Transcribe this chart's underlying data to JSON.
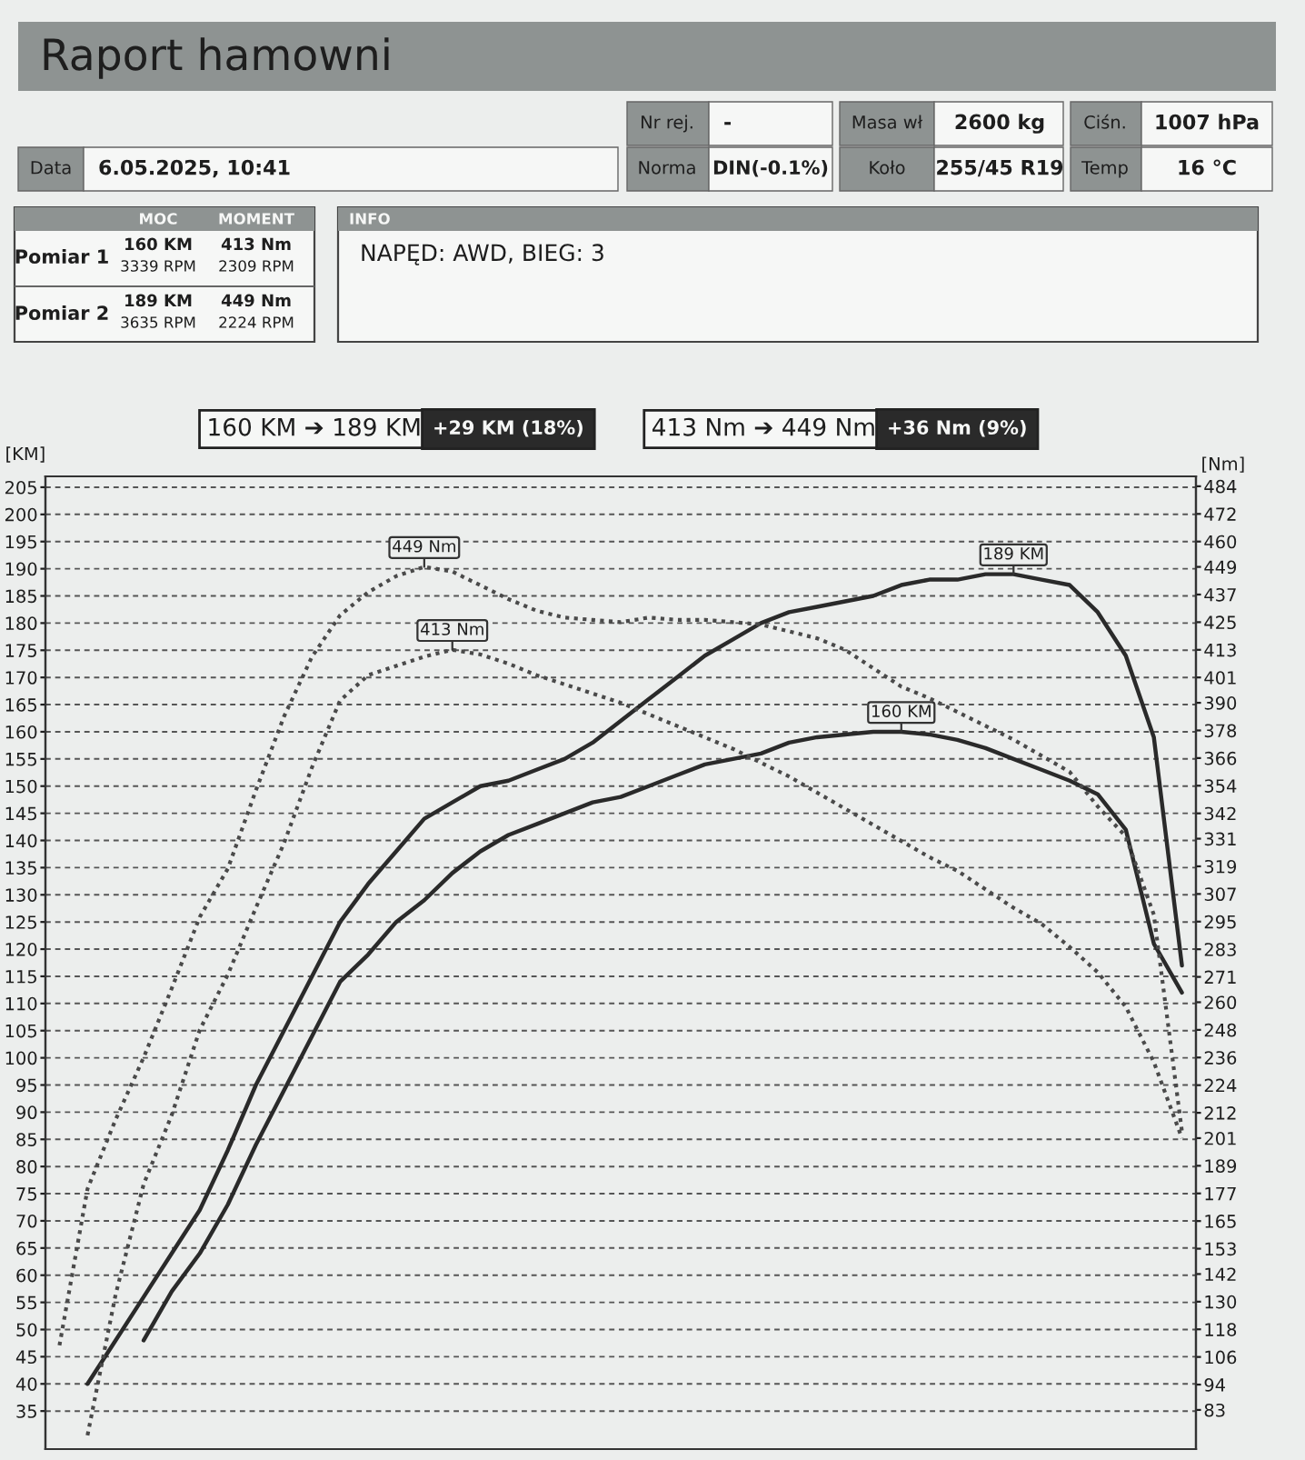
{
  "chart_data": [
    {
      "type": "other",
      "title": "Raport hamowni",
      "annotations": [
        "Data",
        "6.05.2025, 10:41",
        "Nr rej.",
        "-",
        "Norma",
        "DIN(-0.1%)",
        "Masa wł",
        "2600 kg",
        "Koło",
        "255/45 R19",
        "Ciśn.",
        "1007 hPa",
        "Temp",
        "16 °C",
        "MOC",
        "MOMENT",
        "Pomiar 1",
        "160 KM",
        "3339 RPM",
        "413 Nm",
        "2309 RPM",
        "Pomiar 2",
        "189 KM",
        "3635 RPM",
        "449 Nm",
        "2224 RPM",
        "INFO",
        "NAPĘD: AWD, BIEG: 3"
      ]
    },
    {
      "type": "line",
      "ylabel": "[KM]",
      "y2label": "[Nm]",
      "annotations": [
        "160 KM ➔ 189 KM",
        "+29 KM (18%)",
        "413 Nm ➔ 449 Nm",
        "+36 Nm (9%)"
      ],
      "categories": [
        null,
        null,
        null,
        null,
        null,
        null,
        null,
        null,
        null,
        null,
        null,
        null,
        null,
        null,
        null,
        null,
        null,
        null,
        null,
        null,
        null,
        null,
        null,
        null,
        null,
        null,
        null,
        null,
        null,
        null,
        null,
        null,
        null,
        null,
        null,
        null,
        null,
        null,
        null,
        null,
        null
      ],
      "ylim": [
        28,
        207
      ],
      "yticks": [
        205,
        200,
        195,
        190,
        185,
        180,
        175,
        170,
        165,
        160,
        155,
        150,
        145,
        140,
        135,
        130,
        125,
        120,
        115,
        110,
        105,
        100,
        95,
        90,
        85,
        80,
        75,
        70,
        65,
        60,
        55,
        50,
        45,
        40,
        35
      ],
      "y2lim": [
        66,
        488.3
      ],
      "y2ticks": [
        484,
        472,
        460,
        449,
        437,
        425,
        413,
        401,
        390,
        378,
        366,
        354,
        342,
        331,
        319,
        307,
        295,
        283,
        271,
        260,
        248,
        236,
        224,
        212,
        201,
        189,
        177,
        165,
        153,
        142,
        130,
        118,
        106,
        94,
        83
      ],
      "grid": "y",
      "series": [
        {
          "color": "#2a2a2a",
          "line_style": "solid",
          "values": [
            null,
            40,
            48,
            56,
            64,
            72,
            83,
            95,
            105,
            115,
            125,
            132,
            138,
            144,
            147,
            150,
            151,
            153,
            155,
            158,
            162,
            166,
            170,
            174,
            177,
            180,
            182,
            183,
            184,
            185,
            187,
            188,
            188,
            189,
            189,
            188,
            187,
            182,
            174,
            159,
            117
          ],
          "value_labels": [
            null,
            null,
            null,
            null,
            null,
            null,
            null,
            null,
            null,
            null,
            null,
            null,
            null,
            null,
            null,
            null,
            null,
            null,
            null,
            null,
            null,
            null,
            null,
            null,
            null,
            null,
            null,
            null,
            null,
            null,
            null,
            null,
            null,
            null,
            "189 KM",
            null,
            null,
            null,
            null,
            null,
            null
          ]
        },
        {
          "color": "#2a2a2a",
          "line_style": "solid",
          "values": [
            null,
            null,
            null,
            48,
            57,
            64,
            73,
            84,
            94,
            104,
            114,
            119,
            125,
            129,
            134,
            138,
            141,
            143,
            145,
            147,
            148,
            150,
            152,
            154,
            155,
            156,
            158,
            159,
            159.5,
            160,
            160,
            159.5,
            158.5,
            157,
            155,
            153,
            151,
            148.5,
            142,
            121,
            112
          ],
          "value_labels": [
            null,
            null,
            null,
            null,
            null,
            null,
            null,
            null,
            null,
            null,
            null,
            null,
            null,
            null,
            null,
            null,
            null,
            null,
            null,
            null,
            null,
            null,
            null,
            null,
            null,
            null,
            null,
            null,
            null,
            null,
            "160 KM",
            null,
            null,
            null,
            null,
            null,
            null,
            null,
            null,
            null,
            null
          ]
        },
        {
          "color": "#4a4a4a",
          "line_style": "dotted",
          "axis": "y2",
          "values": [
            111,
            179,
            209,
            236,
            266,
            297,
            318,
            352,
            384,
            410,
            428,
            438,
            445,
            449,
            447,
            441,
            435,
            430,
            427,
            426,
            425,
            427,
            426,
            426,
            425,
            424,
            421,
            418,
            413,
            405,
            397,
            392,
            386,
            380,
            374,
            367,
            360,
            345,
            332,
            298,
            204
          ],
          "value_labels": [
            null,
            null,
            null,
            null,
            null,
            null,
            null,
            null,
            null,
            null,
            null,
            null,
            null,
            "449 Nm",
            null,
            null,
            null,
            null,
            null,
            null,
            null,
            null,
            null,
            null,
            null,
            null,
            null,
            null,
            null,
            null,
            null,
            null,
            null,
            null,
            null,
            null,
            null,
            null,
            null,
            null,
            null
          ]
        },
        {
          "color": "#4a4a4a",
          "line_style": "dotted",
          "axis": "y2",
          "values": [
            null,
            72,
            133,
            181,
            211,
            248,
            272,
            301,
            329,
            362,
            391,
            402,
            406,
            410,
            413,
            411,
            407,
            402,
            398,
            394,
            390,
            385,
            380,
            375,
            370,
            364,
            358,
            351,
            344,
            337,
            330,
            323,
            317,
            309,
            301,
            294,
            284,
            273,
            258,
            234,
            201
          ],
          "value_labels": [
            null,
            null,
            null,
            null,
            null,
            null,
            null,
            null,
            null,
            null,
            null,
            null,
            null,
            null,
            "413 Nm",
            null,
            null,
            null,
            null,
            null,
            null,
            null,
            null,
            null,
            null,
            null,
            null,
            null,
            null,
            null,
            null,
            null,
            null,
            null,
            null,
            null,
            null,
            null,
            null,
            null,
            null
          ]
        }
      ]
    }
  ]
}
